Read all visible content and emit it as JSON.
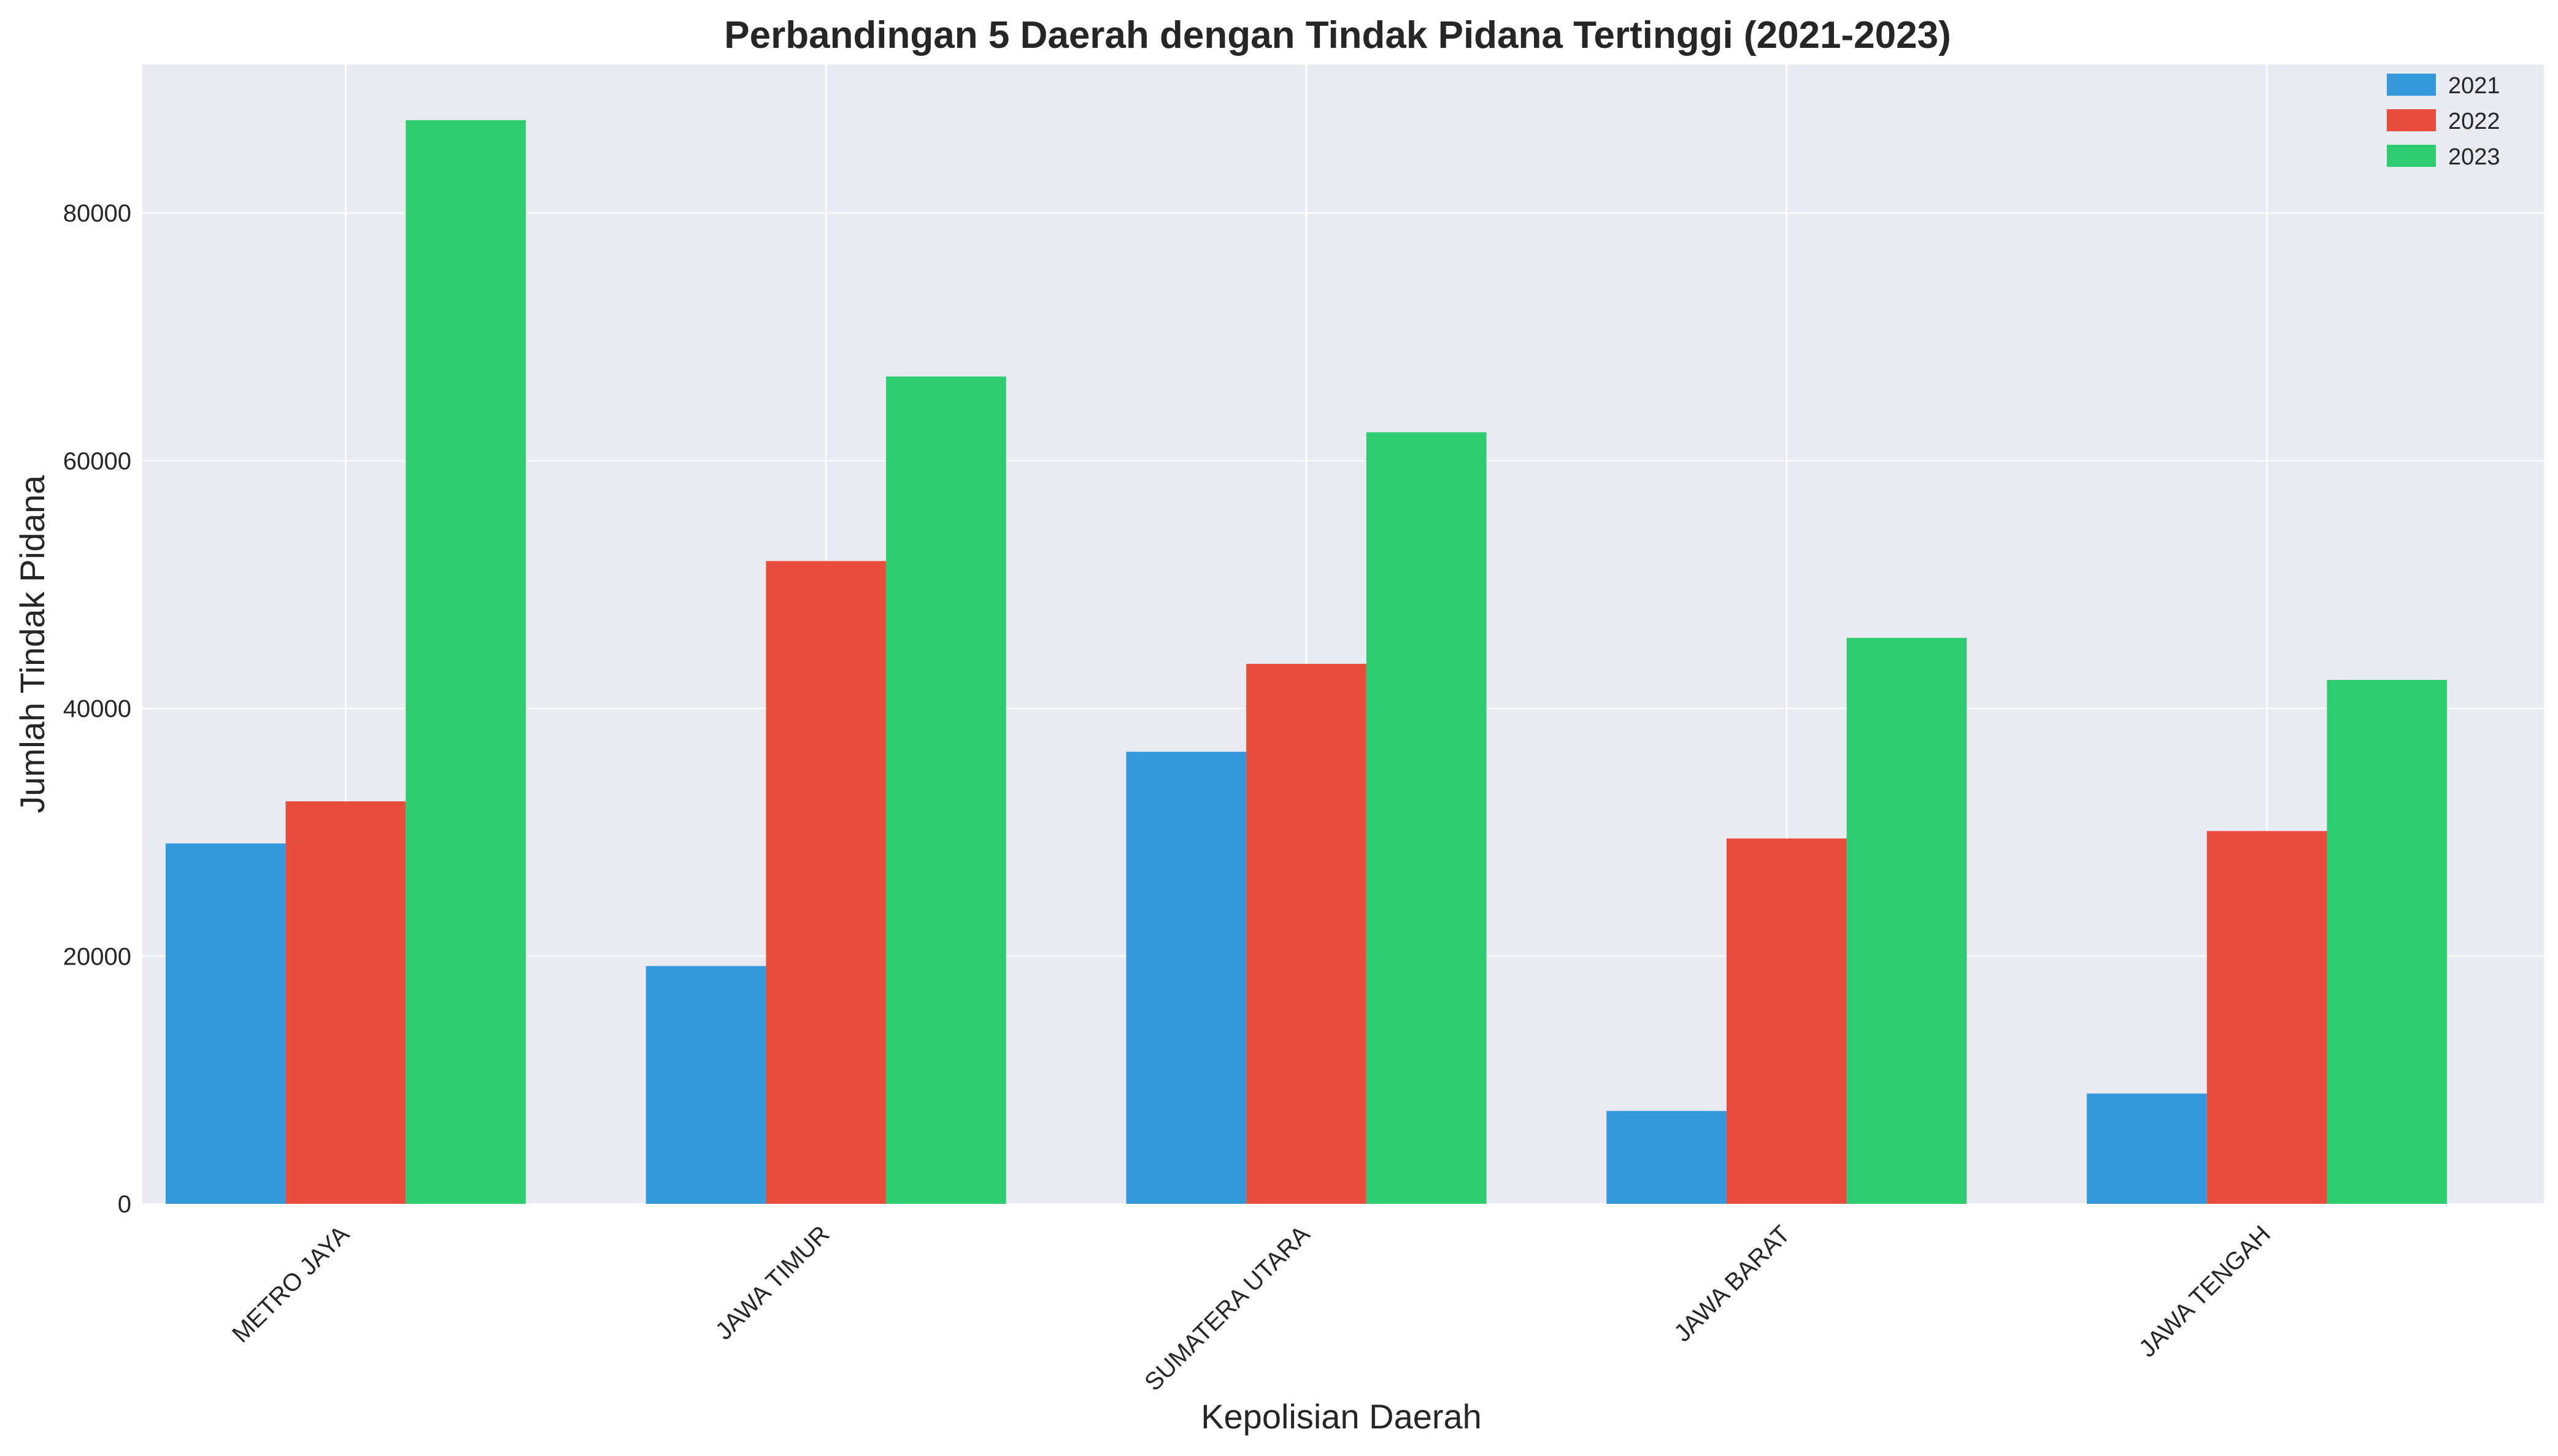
{
  "chart_data": {
    "type": "bar",
    "title": "Perbandingan 5 Daerah dengan Tindak Pidana Tertinggi (2021-2023)",
    "xlabel": "Kepolisian Daerah",
    "ylabel": "Jumlah Tindak Pidana",
    "categories": [
      "METRO JAYA",
      "JAWA TIMUR",
      "SUMATERA UTARA",
      "JAWA BARAT",
      "JAWA TENGAH"
    ],
    "series": [
      {
        "name": "2021",
        "color": "#3598db",
        "values": [
          29100,
          19200,
          36500,
          7500,
          8900
        ]
      },
      {
        "name": "2022",
        "color": "#e74c3c",
        "values": [
          32500,
          51900,
          43600,
          29500,
          30100
        ]
      },
      {
        "name": "2023",
        "color": "#2ecc71",
        "values": [
          87500,
          66800,
          62300,
          45700,
          42300
        ]
      }
    ],
    "ylim": [
      0,
      92000
    ],
    "yticks": [
      0,
      20000,
      40000,
      60000,
      80000
    ],
    "grid": true,
    "legend_position": "top-right",
    "background": "#eaeaf2"
  }
}
